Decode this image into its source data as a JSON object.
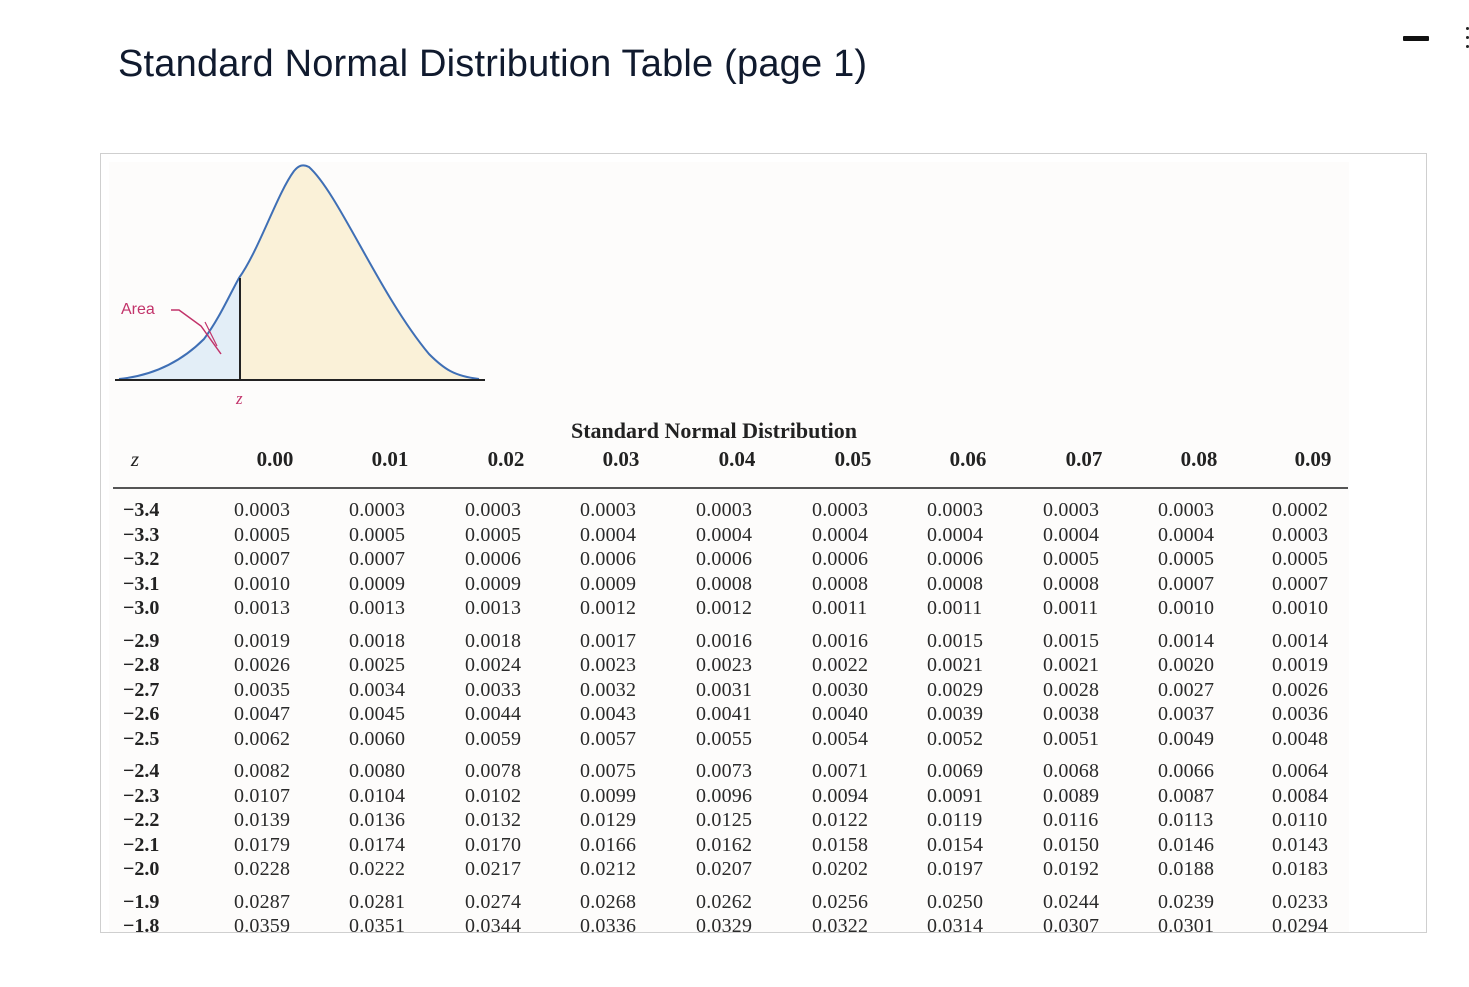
{
  "page": {
    "title": "Standard Normal Distribution Table (page 1)"
  },
  "figure": {
    "area_label": "Area",
    "z_label": "z",
    "colors": {
      "curve": "#3f6fb5",
      "area_fill": "#e3eef7",
      "body_fill": "#faf1d8",
      "label": "#c2336a"
    }
  },
  "table": {
    "title": "Standard Normal Distribution",
    "z_header": "z",
    "columns": [
      "0.00",
      "0.01",
      "0.02",
      "0.03",
      "0.04",
      "0.05",
      "0.06",
      "0.07",
      "0.08",
      "0.09"
    ],
    "rows": [
      {
        "z": "−3.4",
        "values": [
          "0.0003",
          "0.0003",
          "0.0003",
          "0.0003",
          "0.0003",
          "0.0003",
          "0.0003",
          "0.0003",
          "0.0003",
          "0.0002"
        ]
      },
      {
        "z": "−3.3",
        "values": [
          "0.0005",
          "0.0005",
          "0.0005",
          "0.0004",
          "0.0004",
          "0.0004",
          "0.0004",
          "0.0004",
          "0.0004",
          "0.0003"
        ]
      },
      {
        "z": "−3.2",
        "values": [
          "0.0007",
          "0.0007",
          "0.0006",
          "0.0006",
          "0.0006",
          "0.0006",
          "0.0006",
          "0.0005",
          "0.0005",
          "0.0005"
        ]
      },
      {
        "z": "−3.1",
        "values": [
          "0.0010",
          "0.0009",
          "0.0009",
          "0.0009",
          "0.0008",
          "0.0008",
          "0.0008",
          "0.0008",
          "0.0007",
          "0.0007"
        ]
      },
      {
        "z": "−3.0",
        "values": [
          "0.0013",
          "0.0013",
          "0.0013",
          "0.0012",
          "0.0012",
          "0.0011",
          "0.0011",
          "0.0011",
          "0.0010",
          "0.0010"
        ]
      },
      {
        "z": "−2.9",
        "values": [
          "0.0019",
          "0.0018",
          "0.0018",
          "0.0017",
          "0.0016",
          "0.0016",
          "0.0015",
          "0.0015",
          "0.0014",
          "0.0014"
        ]
      },
      {
        "z": "−2.8",
        "values": [
          "0.0026",
          "0.0025",
          "0.0024",
          "0.0023",
          "0.0023",
          "0.0022",
          "0.0021",
          "0.0021",
          "0.0020",
          "0.0019"
        ]
      },
      {
        "z": "−2.7",
        "values": [
          "0.0035",
          "0.0034",
          "0.0033",
          "0.0032",
          "0.0031",
          "0.0030",
          "0.0029",
          "0.0028",
          "0.0027",
          "0.0026"
        ]
      },
      {
        "z": "−2.6",
        "values": [
          "0.0047",
          "0.0045",
          "0.0044",
          "0.0043",
          "0.0041",
          "0.0040",
          "0.0039",
          "0.0038",
          "0.0037",
          "0.0036"
        ]
      },
      {
        "z": "−2.5",
        "values": [
          "0.0062",
          "0.0060",
          "0.0059",
          "0.0057",
          "0.0055",
          "0.0054",
          "0.0052",
          "0.0051",
          "0.0049",
          "0.0048"
        ]
      },
      {
        "z": "−2.4",
        "values": [
          "0.0082",
          "0.0080",
          "0.0078",
          "0.0075",
          "0.0073",
          "0.0071",
          "0.0069",
          "0.0068",
          "0.0066",
          "0.0064"
        ]
      },
      {
        "z": "−2.3",
        "values": [
          "0.0107",
          "0.0104",
          "0.0102",
          "0.0099",
          "0.0096",
          "0.0094",
          "0.0091",
          "0.0089",
          "0.0087",
          "0.0084"
        ]
      },
      {
        "z": "−2.2",
        "values": [
          "0.0139",
          "0.0136",
          "0.0132",
          "0.0129",
          "0.0125",
          "0.0122",
          "0.0119",
          "0.0116",
          "0.0113",
          "0.0110"
        ]
      },
      {
        "z": "−2.1",
        "values": [
          "0.0179",
          "0.0174",
          "0.0170",
          "0.0166",
          "0.0162",
          "0.0158",
          "0.0154",
          "0.0150",
          "0.0146",
          "0.0143"
        ]
      },
      {
        "z": "−2.0",
        "values": [
          "0.0228",
          "0.0222",
          "0.0217",
          "0.0212",
          "0.0207",
          "0.0202",
          "0.0197",
          "0.0192",
          "0.0188",
          "0.0183"
        ]
      },
      {
        "z": "−1.9",
        "values": [
          "0.0287",
          "0.0281",
          "0.0274",
          "0.0268",
          "0.0262",
          "0.0256",
          "0.0250",
          "0.0244",
          "0.0239",
          "0.0233"
        ]
      },
      {
        "z": "−1.8",
        "values": [
          "0.0359",
          "0.0351",
          "0.0344",
          "0.0336",
          "0.0329",
          "0.0322",
          "0.0314",
          "0.0307",
          "0.0301",
          "0.0294"
        ]
      }
    ]
  }
}
